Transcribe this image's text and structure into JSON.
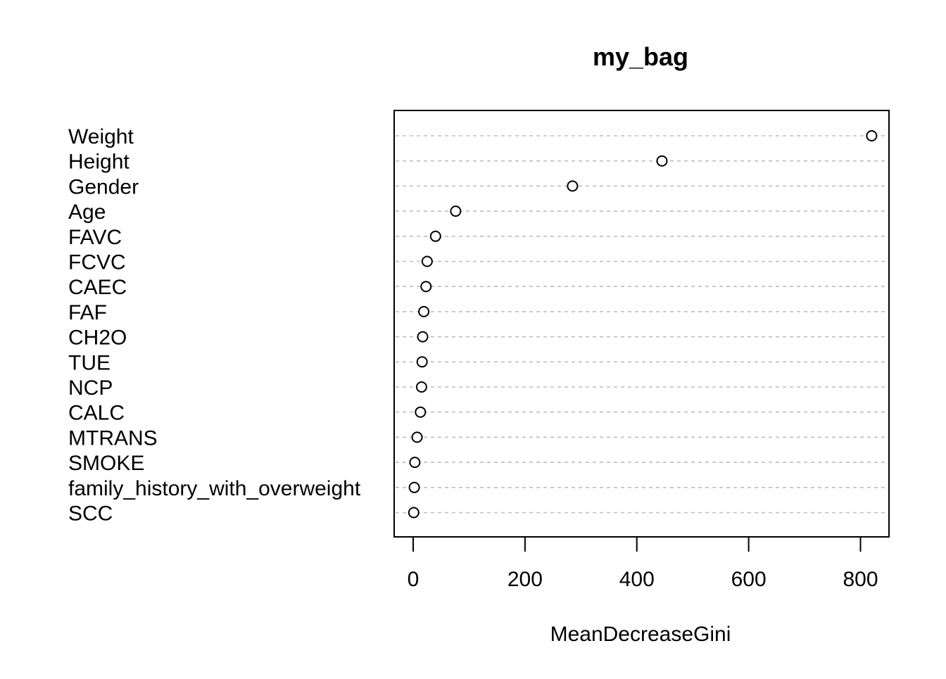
{
  "chart_data": {
    "type": "scatter",
    "title": "my_bag",
    "xlabel": "MeanDecreaseGini",
    "ylabel": "",
    "xlim": [
      -34,
      851
    ],
    "xticks": [
      0,
      200,
      400,
      600,
      800
    ],
    "grid": "dotted horizontal lines per category",
    "categories": [
      "Weight",
      "Height",
      "Gender",
      "Age",
      "FAVC",
      "FCVC",
      "CAEC",
      "FAF",
      "CH2O",
      "TUE",
      "NCP",
      "CALC",
      "MTRANS",
      "SMOKE",
      "family_history_with_overweight",
      "SCC"
    ],
    "values": [
      820,
      445,
      285,
      76,
      40,
      25,
      23,
      19,
      17,
      16,
      15,
      13,
      7,
      3,
      2,
      1
    ]
  }
}
